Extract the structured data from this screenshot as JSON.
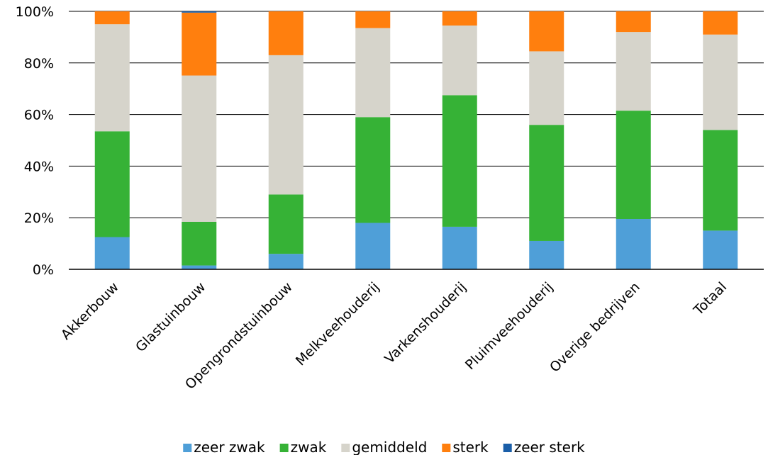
{
  "chart_data": {
    "type": "bar",
    "stacked": true,
    "percent": true,
    "categories": [
      "Akkerbouw",
      "Glastuinbouw",
      "Opengrondstuinbouw",
      "Melkveehouderij",
      "Varkenshouderij",
      "Pluimveehouderij",
      "Overige bedrijven",
      "Totaal"
    ],
    "series": [
      {
        "name": "zeer zwak",
        "color": "#4f9fd8",
        "values": [
          12.5,
          1.5,
          6,
          18,
          16.5,
          11,
          19.5,
          15
        ]
      },
      {
        "name": "zwak",
        "color": "#36b236",
        "values": [
          41,
          17,
          23,
          41,
          51,
          45,
          42,
          39
        ]
      },
      {
        "name": "gemiddeld",
        "color": "#d6d4cb",
        "values": [
          41.5,
          57,
          54,
          34.5,
          27,
          28.5,
          30.5,
          37
        ]
      },
      {
        "name": "sterk",
        "color": "#ff7f0e",
        "values": [
          5,
          24.5,
          17,
          6.5,
          5.5,
          15.5,
          8,
          9
        ]
      },
      {
        "name": "zeer sterk",
        "color": "#1a5ea8",
        "values": [
          0,
          0.5,
          0,
          0,
          0,
          0,
          0,
          0
        ]
      }
    ],
    "ylim": [
      0,
      100
    ],
    "yticks": [
      "0%",
      "20%",
      "40%",
      "60%",
      "80%",
      "100%"
    ],
    "grid": true,
    "legend_position": "bottom"
  }
}
